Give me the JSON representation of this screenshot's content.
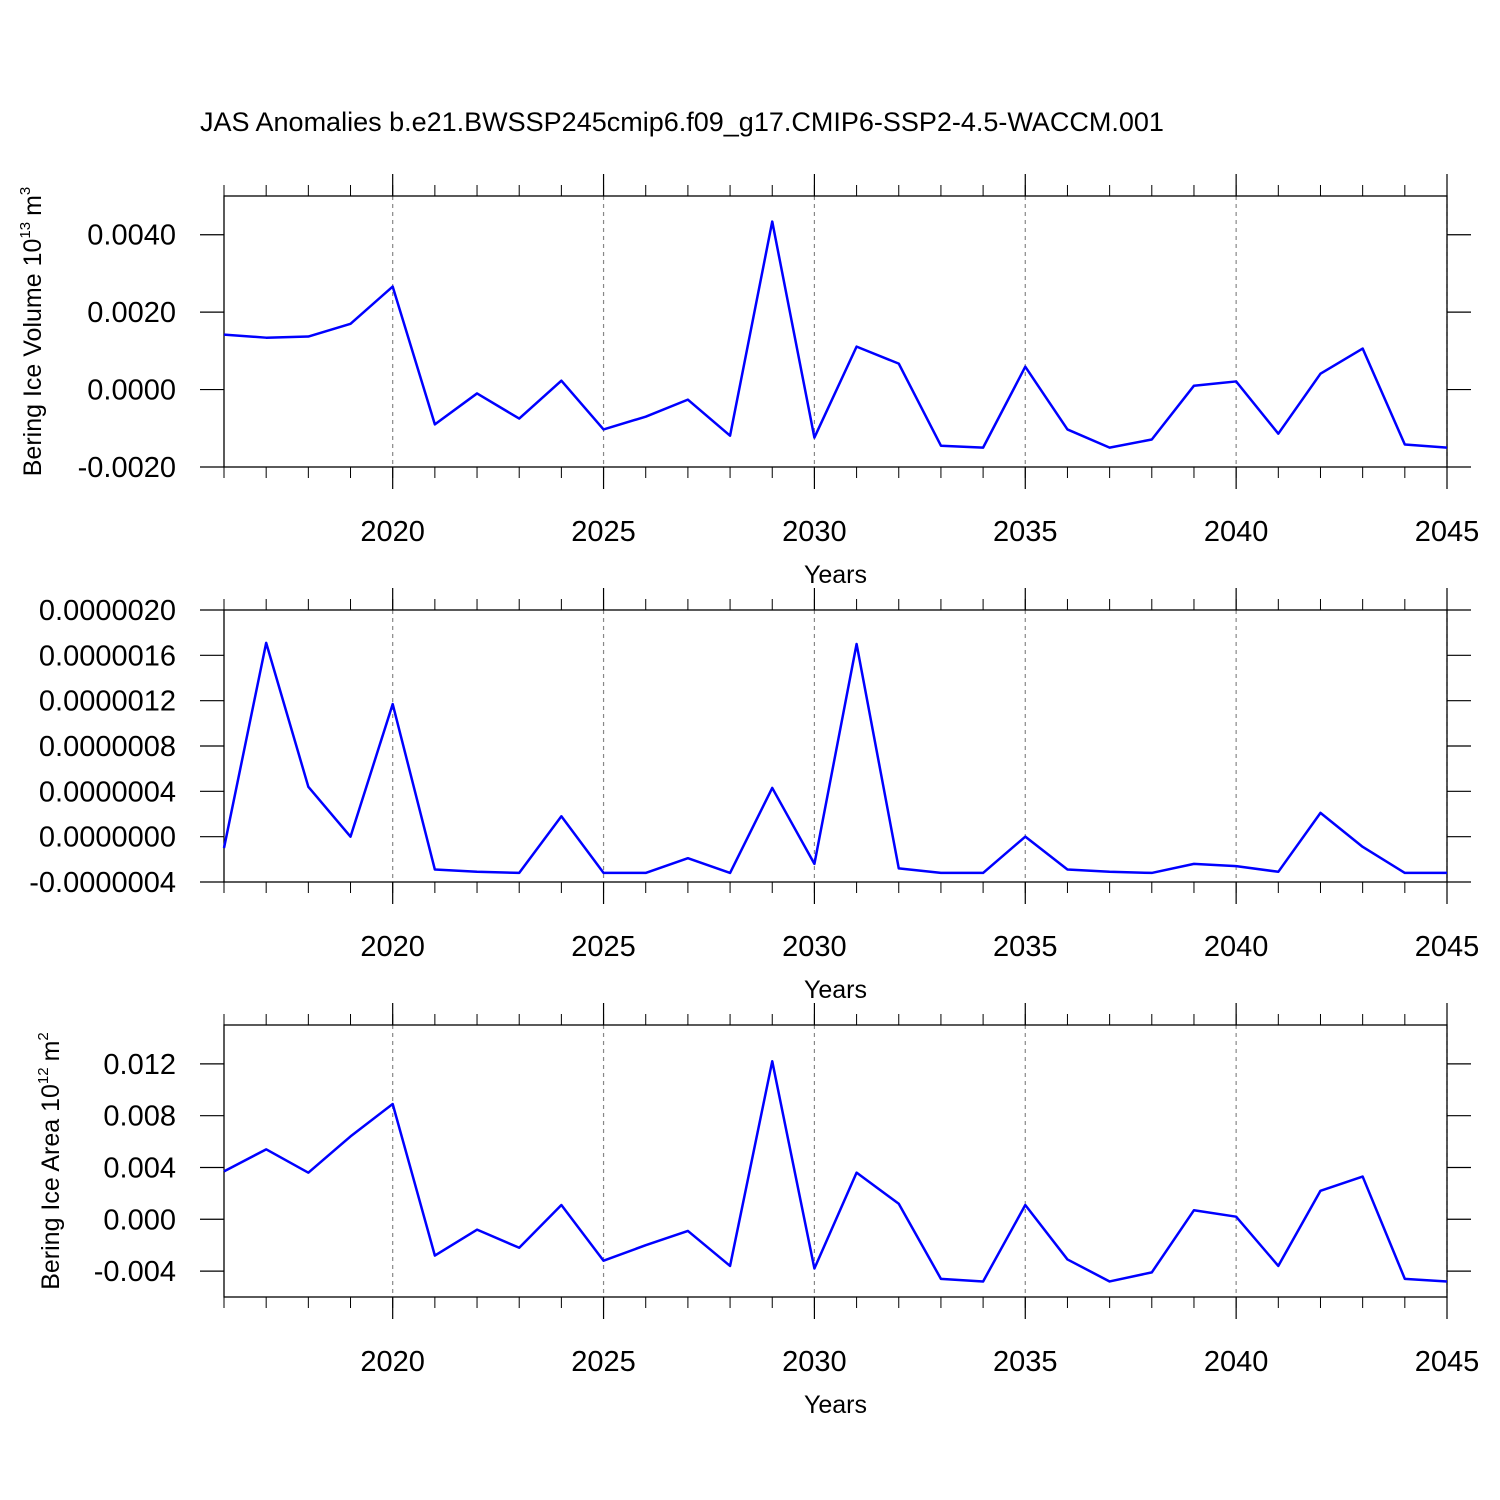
{
  "chart_data": [
    {
      "type": "line",
      "title": "JAS Anomalies b.e21.BWSSP245cmip6.f09_g17.CMIP6-SSP2-4.5-WACCM.001",
      "xlabel": "Years",
      "ylabel": {
        "text": "Bering Ice Volume 10",
        "exponent": "13",
        "unit": "m",
        "unit_exponent": "3"
      },
      "x": [
        2016,
        2017,
        2018,
        2019,
        2020,
        2021,
        2022,
        2023,
        2024,
        2025,
        2026,
        2027,
        2028,
        2029,
        2030,
        2031,
        2032,
        2033,
        2034,
        2035,
        2036,
        2037,
        2038,
        2039,
        2040,
        2041,
        2042,
        2043,
        2044,
        2045
      ],
      "series": [
        {
          "color": "#0000ff",
          "values": [
            0.00142,
            0.00134,
            0.00137,
            0.0017,
            0.00266,
            -0.0009,
            -0.0001,
            -0.00075,
            0.00023,
            -0.00103,
            -0.0007,
            -0.00026,
            -0.00119,
            0.00434,
            -0.00124,
            0.00111,
            0.00067,
            -0.00145,
            -0.0015,
            0.00059,
            -0.00103,
            -0.0015,
            -0.00129,
            0.0001,
            0.00021,
            -0.00114,
            0.00041,
            0.00106,
            -0.00142,
            -0.0015
          ]
        }
      ],
      "xlim": [
        2016,
        2045
      ],
      "xticks": [
        2020,
        2025,
        2030,
        2035,
        2040,
        2045
      ],
      "ylim": [
        -0.002,
        0.005
      ],
      "yticks": [
        {
          "value": -0.002,
          "label": "-0.0020"
        },
        {
          "value": 0,
          "label": "0.0000"
        },
        {
          "value": 0.002,
          "label": "0.0020"
        },
        {
          "value": 0.004,
          "label": "0.0040"
        }
      ],
      "grid": "x-dashed"
    },
    {
      "type": "line",
      "xlabel": "Years",
      "x": [
        2016,
        2017,
        2018,
        2019,
        2020,
        2021,
        2022,
        2023,
        2024,
        2025,
        2026,
        2027,
        2028,
        2029,
        2030,
        2031,
        2032,
        2033,
        2034,
        2035,
        2036,
        2037,
        2038,
        2039,
        2040,
        2041,
        2042,
        2043,
        2044,
        2045
      ],
      "series": [
        {
          "color": "#0000ff",
          "values": [
            -1e-07,
            1.71e-06,
            4.4e-07,
            0,
            1.17e-06,
            -2.9e-07,
            -3.1e-07,
            -3.2e-07,
            1.8e-07,
            -3.2e-07,
            -3.2e-07,
            -1.9e-07,
            -3.2e-07,
            4.3e-07,
            -2.4e-07,
            1.7e-06,
            -2.8e-07,
            -3.2e-07,
            -3.2e-07,
            0,
            -2.9e-07,
            -3.1e-07,
            -3.2e-07,
            -2.4e-07,
            -2.6e-07,
            -3.1e-07,
            2.1e-07,
            -9e-08,
            -3.2e-07,
            -3.2e-07
          ]
        }
      ],
      "xlim": [
        2016,
        2045
      ],
      "xticks": [
        2020,
        2025,
        2030,
        2035,
        2040,
        2045
      ],
      "ylim": [
        -4e-07,
        2e-06
      ],
      "yticks": [
        {
          "value": -4e-07,
          "label": "-0.0000004"
        },
        {
          "value": 0,
          "label": "0.0000000"
        },
        {
          "value": 4e-07,
          "label": "0.0000004"
        },
        {
          "value": 8e-07,
          "label": "0.0000008"
        },
        {
          "value": 1.2e-06,
          "label": "0.0000012"
        },
        {
          "value": 1.6e-06,
          "label": "0.0000016"
        },
        {
          "value": 2e-06,
          "label": "0.0000020"
        }
      ],
      "grid": "x-dashed"
    },
    {
      "type": "line",
      "xlabel": "Years",
      "ylabel": {
        "text": "Bering Ice Area 10",
        "exponent": "12",
        "unit": "m",
        "unit_exponent": "2"
      },
      "x": [
        2016,
        2017,
        2018,
        2019,
        2020,
        2021,
        2022,
        2023,
        2024,
        2025,
        2026,
        2027,
        2028,
        2029,
        2030,
        2031,
        2032,
        2033,
        2034,
        2035,
        2036,
        2037,
        2038,
        2039,
        2040,
        2041,
        2042,
        2043,
        2044,
        2045
      ],
      "series": [
        {
          "color": "#0000ff",
          "values": [
            0.0037,
            0.0054,
            0.0036,
            0.0064,
            0.0089,
            -0.0028,
            -0.0008,
            -0.0022,
            0.0011,
            -0.0032,
            -0.002,
            -0.0009,
            -0.0036,
            0.0122,
            -0.0038,
            0.0036,
            0.0012,
            -0.0046,
            -0.0048,
            0.0011,
            -0.0031,
            -0.0048,
            -0.0041,
            0.0007,
            0.0002,
            -0.0036,
            0.0022,
            0.0033,
            -0.0046,
            -0.0048
          ]
        }
      ],
      "xlim": [
        2016,
        2045
      ],
      "xticks": [
        2020,
        2025,
        2030,
        2035,
        2040,
        2045
      ],
      "ylim": [
        -0.006,
        0.015
      ],
      "yticks": [
        -0.004,
        {
          "value": 0,
          "label": "0.000"
        },
        0.004,
        0.008,
        0.012
      ],
      "grid": "x-dashed"
    }
  ]
}
